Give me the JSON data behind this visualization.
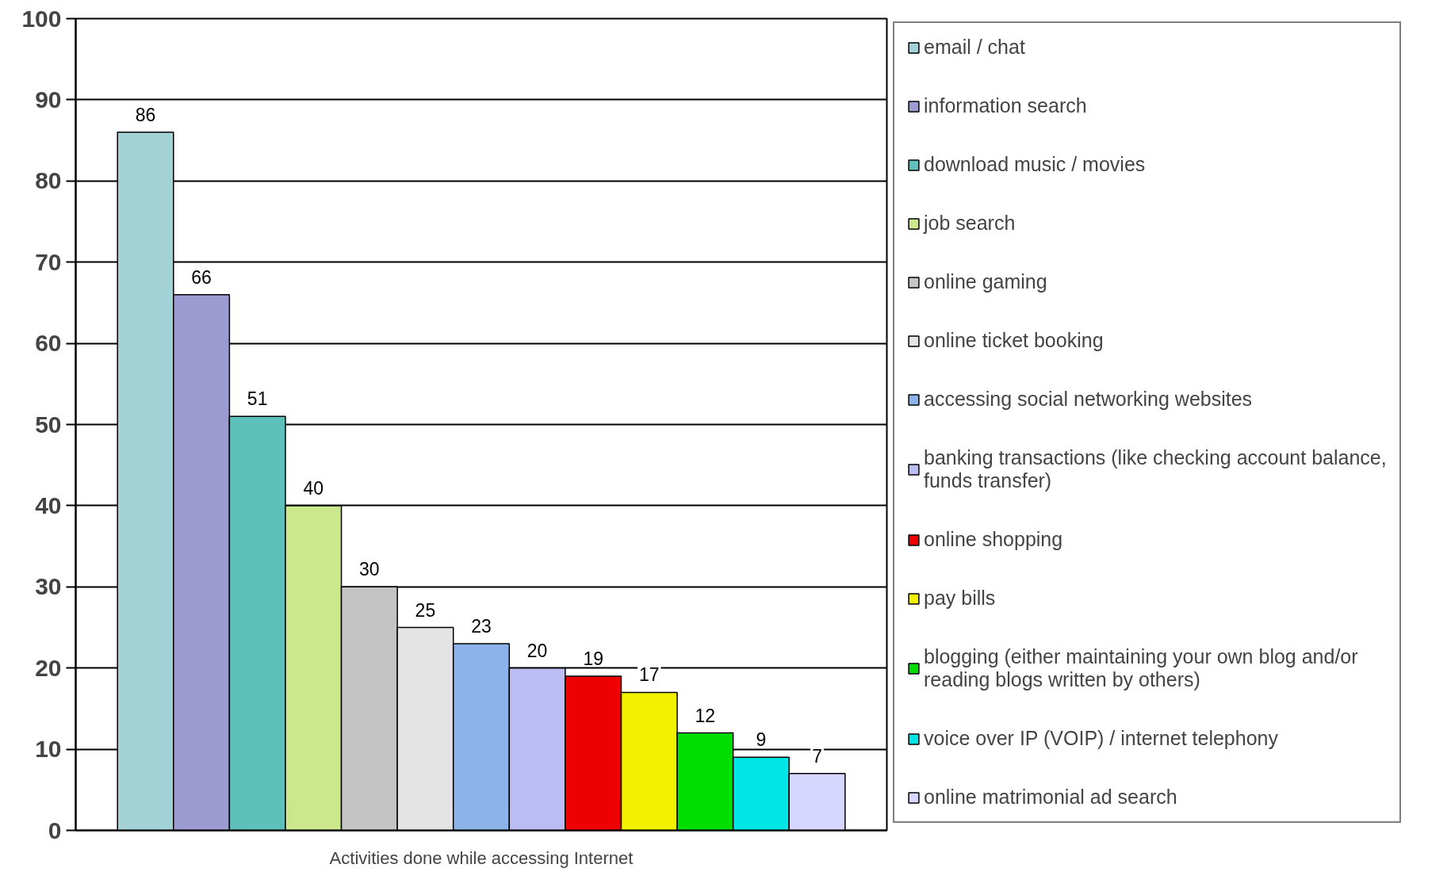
{
  "chart_data": {
    "type": "bar",
    "categories": [
      "Activities done while accessing Internet"
    ],
    "series": [
      {
        "name": "email / chat",
        "color": "#a3d2d6",
        "values": [
          86
        ]
      },
      {
        "name": "information search",
        "color": "#9c9cd2",
        "values": [
          66
        ]
      },
      {
        "name": "download music / movies",
        "color": "#5fc0bb",
        "values": [
          51
        ]
      },
      {
        "name": "job search",
        "color": "#cbe88c",
        "values": [
          40
        ]
      },
      {
        "name": "online gaming",
        "color": "#c4c4c4",
        "values": [
          30
        ]
      },
      {
        "name": "online ticket booking",
        "color": "#e4e4e4",
        "values": [
          25
        ]
      },
      {
        "name": "accessing social networking websites",
        "color": "#8db4ea",
        "values": [
          23
        ]
      },
      {
        "name": "banking transactions (like checking account balance, funds transfer)",
        "color": "#bcbcf4",
        "values": [
          20
        ]
      },
      {
        "name": "online shopping",
        "color": "#ee0000",
        "values": [
          19
        ]
      },
      {
        "name": "pay bills",
        "color": "#f2f200",
        "values": [
          17
        ]
      },
      {
        "name": "blogging (either maintaining your own blog and/or reading blogs written by others)",
        "color": "#00dd00",
        "values": [
          12
        ]
      },
      {
        "name": "voice over IP (VOIP) / internet telephony",
        "color": "#00e6e6",
        "values": [
          9
        ]
      },
      {
        "name": "online matrimonial ad search",
        "color": "#d6d6ff",
        "values": [
          7
        ]
      }
    ],
    "ylim": [
      0,
      100
    ],
    "yticks": [
      0,
      10,
      20,
      30,
      40,
      50,
      60,
      70,
      80,
      90,
      100
    ],
    "grid": "y",
    "legend": "right",
    "data_labels": true
  }
}
